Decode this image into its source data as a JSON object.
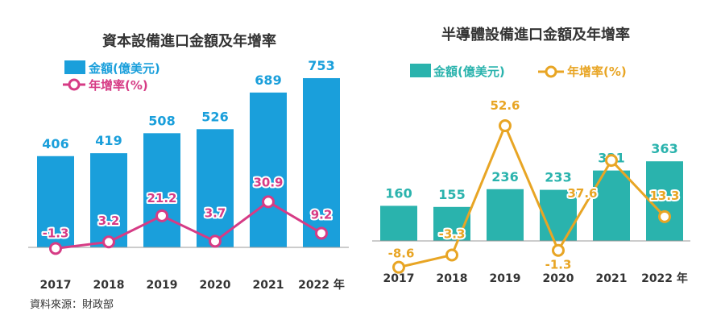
{
  "source": "資料來源：財政部",
  "colors": {
    "left_bar": "#1a9fdb",
    "left_line": "#d63b85",
    "right_bar": "#2ab3ad",
    "right_line": "#e8a524",
    "bar_label_left": "#1a9fdb",
    "bar_label_right": "#2ab3ad"
  },
  "chart_data": [
    {
      "type": "bar",
      "title": "資本設備進口金額及年增率",
      "categories": [
        "2017",
        "2018",
        "2019",
        "2020",
        "2021",
        "2022 年"
      ],
      "series": [
        {
          "name": "金額(億美元)",
          "kind": "bar",
          "values": [
            406,
            419,
            508,
            526,
            689,
            753
          ]
        },
        {
          "name": "年增率(%)",
          "kind": "line",
          "values": [
            -1.3,
            3.2,
            21.2,
            3.7,
            30.9,
            9.2
          ],
          "labels": [
            "-1.3",
            "3.2",
            "21.2",
            "3.7",
            "30.9",
            "9.2"
          ]
        }
      ],
      "legend_position": "top-left"
    },
    {
      "type": "bar",
      "title": "半導體設備進口金額及年增率",
      "categories": [
        "2017",
        "2018",
        "2019",
        "2020",
        "2021",
        "2022 年"
      ],
      "series": [
        {
          "name": "金額(億美元)",
          "kind": "bar",
          "values": [
            160,
            155,
            236,
            233,
            321,
            363
          ]
        },
        {
          "name": "年增率(%)",
          "kind": "line",
          "values": [
            -8.6,
            -3.3,
            52.6,
            -1.3,
            37.6,
            13.3
          ],
          "labels": [
            "-8.6",
            "-3.3",
            "52.6",
            "-1.3",
            "37.6",
            "13.3"
          ]
        }
      ],
      "legend_position": "top"
    }
  ]
}
